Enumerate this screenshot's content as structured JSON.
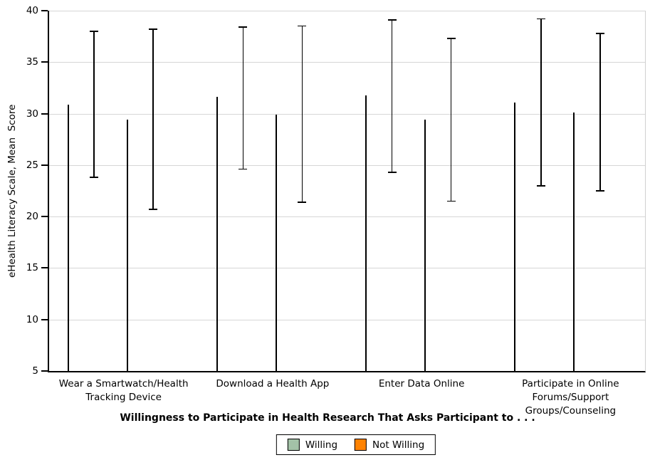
{
  "chart_data": {
    "type": "bar",
    "categories": [
      "Wear a Smartwatch/Health Tracking Device",
      "Download a Health App",
      "Enter Data Online",
      "Participate in Online Forums/Support Groups/Counseling"
    ],
    "series": [
      {
        "name": "Willing",
        "color": "#A3C2A7",
        "values": [
          30.9,
          31.6,
          31.8,
          31.1
        ],
        "error_low": [
          23.8,
          24.6,
          24.3,
          23.0
        ],
        "error_high": [
          38.0,
          38.4,
          39.1,
          39.2
        ]
      },
      {
        "name": "Not Willing",
        "color": "#FF8200",
        "values": [
          29.4,
          29.9,
          29.4,
          30.1
        ],
        "error_low": [
          20.7,
          21.4,
          21.5,
          22.5
        ],
        "error_high": [
          38.2,
          38.5,
          37.3,
          37.8
        ]
      }
    ],
    "xlabel": "Willingness to Participate in Health Research That Asks Participant to . . .",
    "ylabel": "eHealth Literacy Scale, Mean  Score",
    "ylim": [
      5,
      40
    ],
    "yticks": [
      5,
      10,
      15,
      20,
      25,
      30,
      35,
      40
    ],
    "grid": true,
    "legend_position": "bottom",
    "axis_color": "#000000",
    "grid_color": "#D6D6D6",
    "background_color": "#FFFFFF"
  }
}
